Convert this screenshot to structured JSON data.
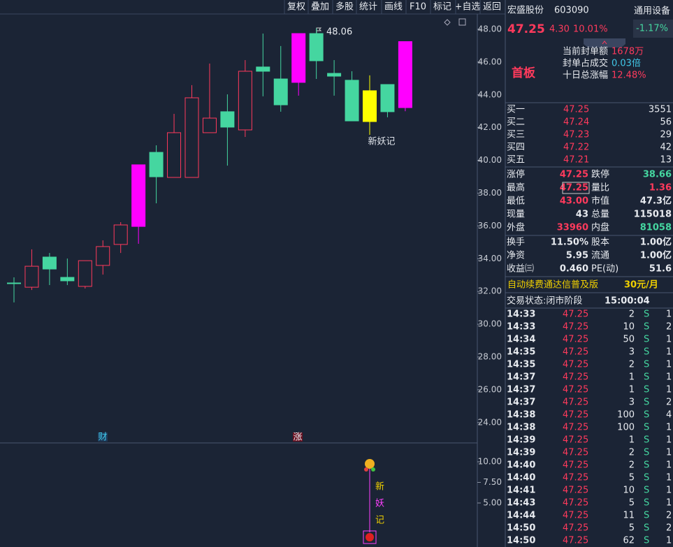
{
  "toolbar": [
    "复权",
    "叠加",
    "多股",
    "统计",
    "画线",
    "F10",
    "标记",
    "+自选",
    "返回"
  ],
  "chart": {
    "ylim": [
      22.8,
      48.85
    ],
    "yticks": [
      {
        "value": 48,
        "label": "48.00"
      },
      {
        "value": 46,
        "label": "46.00"
      },
      {
        "value": 44,
        "label": "44.00"
      },
      {
        "value": 42,
        "label": "42.00"
      },
      {
        "value": 40,
        "label": "40.00"
      },
      {
        "value": 38,
        "label": "38.00"
      },
      {
        "value": 36,
        "label": "36.00"
      },
      {
        "value": 34,
        "label": "34.00"
      },
      {
        "value": 32,
        "label": "32.00"
      },
      {
        "value": 30,
        "label": "30.00"
      },
      {
        "value": 28,
        "label": "28.00"
      },
      {
        "value": 26,
        "label": "26.00"
      },
      {
        "value": 24,
        "label": "24.00"
      }
    ],
    "candles": [
      {
        "open": 32.52,
        "close": 32.5,
        "high": 32.86,
        "low": 31.33,
        "color": "#45d6a0",
        "filled": true
      },
      {
        "open": 32.26,
        "close": 33.54,
        "high": 34.57,
        "low": 32.09,
        "color": "#ff3a5c",
        "filled": false
      },
      {
        "open": 34.1,
        "close": 33.37,
        "high": 34.35,
        "low": 32.39,
        "color": "#45d6a0",
        "filled": true
      },
      {
        "open": 32.86,
        "close": 32.65,
        "high": 34.01,
        "low": 32.39,
        "color": "#45d6a0",
        "filled": true
      },
      {
        "open": 32.31,
        "close": 33.88,
        "high": 33.88,
        "low": 32.18,
        "color": "#ff3a5c",
        "filled": false
      },
      {
        "open": 33.59,
        "close": 34.74,
        "high": 35.12,
        "low": 33.03,
        "color": "#ff3a5c",
        "filled": false
      },
      {
        "open": 34.87,
        "close": 36.06,
        "high": 36.23,
        "low": 34.35,
        "color": "#ff3a5c",
        "filled": false
      },
      {
        "open": 35.97,
        "close": 39.73,
        "high": 39.73,
        "low": 34.91,
        "color": "#ff00ff",
        "filled": true
      },
      {
        "open": 40.49,
        "close": 39.0,
        "high": 40.92,
        "low": 37.38,
        "color": "#45d6a0",
        "filled": true
      },
      {
        "open": 38.96,
        "close": 41.69,
        "high": 42.84,
        "low": 38.96,
        "color": "#ff3a5c",
        "filled": false
      },
      {
        "open": 38.96,
        "close": 43.82,
        "high": 44.59,
        "low": 38.96,
        "color": "#ff3a5c",
        "filled": false
      },
      {
        "open": 41.69,
        "close": 42.58,
        "high": 45.91,
        "low": 41.69,
        "color": "#ff3a5c",
        "filled": false
      },
      {
        "open": 42.97,
        "close": 42.03,
        "high": 44.03,
        "low": 39.68,
        "color": "#45d6a0",
        "filled": true
      },
      {
        "open": 41.86,
        "close": 45.44,
        "high": 46.12,
        "low": 41.43,
        "color": "#ff3a5c",
        "filled": false
      },
      {
        "open": 45.7,
        "close": 45.44,
        "high": 47.74,
        "low": 43.91,
        "color": "#45d6a0",
        "filled": true
      },
      {
        "open": 44.97,
        "close": 43.39,
        "high": 46.98,
        "low": 42.97,
        "color": "#45d6a0",
        "filled": true
      },
      {
        "open": 44.76,
        "close": 47.74,
        "high": 47.74,
        "low": 43.95,
        "color": "#ff00ff",
        "filled": true
      },
      {
        "open": 47.74,
        "close": 46.08,
        "high": 48.06,
        "low": 44.97,
        "color": "#45d6a0",
        "filled": true
      },
      {
        "open": 45.31,
        "close": 45.14,
        "high": 46.12,
        "low": 43.95,
        "color": "#45d6a0",
        "filled": true
      },
      {
        "open": 44.89,
        "close": 42.41,
        "high": 45.44,
        "low": 42.41,
        "color": "#45d6a0",
        "filled": true
      },
      {
        "open": 42.37,
        "close": 44.25,
        "high": 45.19,
        "low": 41.56,
        "color": "#ffff00",
        "filled": true
      },
      {
        "open": 44.63,
        "close": 42.97,
        "high": 44.63,
        "low": 42.63,
        "color": "#45d6a0",
        "filled": true
      },
      {
        "open": 43.22,
        "close": 47.25,
        "high": 47.25,
        "low": 43.0,
        "color": "#ff00ff",
        "filled": true
      }
    ],
    "high_label": 48.06,
    "signal_label": "新妖记",
    "markers": [
      "财",
      "涨"
    ]
  },
  "indicator": {
    "ylim": [
      0,
      12
    ],
    "yticks": [
      {
        "value": 10,
        "label": "10.00"
      },
      {
        "value": 7.5,
        "label": "7.50"
      },
      {
        "value": 5,
        "label": "5.00"
      }
    ],
    "labels": [
      "新",
      "妖",
      "记"
    ]
  },
  "stock": {
    "name": "宏盛股份",
    "code": "603090",
    "sector": "通用设备",
    "sector_change": "-1.17%",
    "price": "47.25",
    "change": "4.30",
    "change_pct": "10.01%",
    "tag": "首板",
    "info": [
      [
        "当前封单额",
        "1678万"
      ],
      [
        "封单占成交",
        "0.03倍"
      ],
      [
        "十日总涨幅",
        "12.48%"
      ]
    ]
  },
  "order_book": [
    [
      "买一",
      "47.25",
      "3551"
    ],
    [
      "买二",
      "47.24",
      "56"
    ],
    [
      "买三",
      "47.23",
      "29"
    ],
    [
      "买四",
      "47.22",
      "42"
    ],
    [
      "买五",
      "47.21",
      "13"
    ]
  ],
  "stats": [
    [
      "涨停",
      "47.25",
      "跌停",
      "38.66"
    ],
    [
      "最高",
      "47.25",
      "量比",
      "1.36"
    ],
    [
      "最低",
      "43.00",
      "市值",
      "47.3亿"
    ],
    [
      "现量",
      "43",
      "总量",
      "115018"
    ],
    [
      "外盘",
      "33960",
      "内盘",
      "81058"
    ],
    [
      "换手",
      "11.50%",
      "股本",
      "1.00亿"
    ],
    [
      "净资",
      "5.95",
      "流通",
      "1.00亿"
    ],
    [
      "收益㈢",
      "0.460",
      "PE(动)",
      "51.6"
    ]
  ],
  "ad": {
    "text": "自动续费通达信普及版",
    "price": "30元/月"
  },
  "status": {
    "text": "交易状态:闭市阶段",
    "time": "15:00:04"
  },
  "ticks": [
    [
      "14:33",
      "47.25",
      "2",
      "S",
      "1"
    ],
    [
      "14:33",
      "47.25",
      "10",
      "S",
      "2"
    ],
    [
      "14:34",
      "47.25",
      "50",
      "S",
      "1"
    ],
    [
      "14:35",
      "47.25",
      "3",
      "S",
      "1"
    ],
    [
      "14:35",
      "47.25",
      "2",
      "S",
      "1"
    ],
    [
      "14:37",
      "47.25",
      "1",
      "S",
      "1"
    ],
    [
      "14:37",
      "47.25",
      "1",
      "S",
      "1"
    ],
    [
      "14:37",
      "47.25",
      "3",
      "S",
      "2"
    ],
    [
      "14:38",
      "47.25",
      "100",
      "S",
      "4"
    ],
    [
      "14:38",
      "47.25",
      "100",
      "S",
      "1"
    ],
    [
      "14:39",
      "47.25",
      "1",
      "S",
      "1"
    ],
    [
      "14:39",
      "47.25",
      "2",
      "S",
      "1"
    ],
    [
      "14:40",
      "47.25",
      "2",
      "S",
      "1"
    ],
    [
      "14:40",
      "47.25",
      "5",
      "S",
      "1"
    ],
    [
      "14:41",
      "47.25",
      "10",
      "S",
      "1"
    ],
    [
      "14:43",
      "47.25",
      "5",
      "S",
      "1"
    ],
    [
      "14:44",
      "47.25",
      "11",
      "S",
      "2"
    ],
    [
      "14:50",
      "47.25",
      "5",
      "S",
      "2"
    ],
    [
      "14:50",
      "47.25",
      "62",
      "S",
      "1"
    ]
  ]
}
